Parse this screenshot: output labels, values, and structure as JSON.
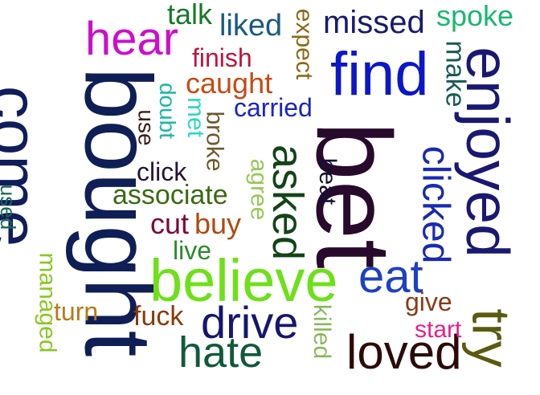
{
  "words": [
    {
      "text": "bought",
      "color": "#0f1f55"
    },
    {
      "text": "come",
      "color": "#111d5a"
    },
    {
      "text": "bet",
      "color": "#280a2c"
    },
    {
      "text": "enjoyed",
      "color": "#1a1870"
    },
    {
      "text": "find",
      "color": "#0b17c9"
    },
    {
      "text": "believe",
      "color": "#6ee019"
    },
    {
      "text": "asked",
      "color": "#134418"
    },
    {
      "text": "eat",
      "color": "#1e40c3"
    },
    {
      "text": "hear",
      "color": "#cc0fcc"
    },
    {
      "text": "loved",
      "color": "#2d0a0a"
    },
    {
      "text": "drive",
      "color": "#17166e"
    },
    {
      "text": "hate",
      "color": "#0f5a3a"
    },
    {
      "text": "try",
      "color": "#5a5a10"
    },
    {
      "text": "clicked",
      "color": "#1a2ab0"
    },
    {
      "text": "missed",
      "color": "#1a1a6b"
    },
    {
      "text": "liked",
      "color": "#1a5a82"
    },
    {
      "text": "spoke",
      "color": "#19b870"
    },
    {
      "text": "talk",
      "color": "#167a2a"
    },
    {
      "text": "finish",
      "color": "#c0143c"
    },
    {
      "text": "caught",
      "color": "#c94a14"
    },
    {
      "text": "carried",
      "color": "#1a23c9"
    },
    {
      "text": "make",
      "color": "#1a5a55"
    },
    {
      "text": "expect",
      "color": "#8a6a14"
    },
    {
      "text": "doubt",
      "color": "#19b8a8"
    },
    {
      "text": "met",
      "color": "#2ad8c2"
    },
    {
      "text": "use",
      "color": "#3a1a14"
    },
    {
      "text": "broke",
      "color": "#6a5a2a"
    },
    {
      "text": "agree",
      "color": "#98c85a"
    },
    {
      "text": "beat",
      "color": "#111133"
    },
    {
      "text": "click",
      "color": "#251535"
    },
    {
      "text": "associate",
      "color": "#3a6a12"
    },
    {
      "text": "used",
      "color": "#1a6a55"
    },
    {
      "text": "cut",
      "color": "#7a0a3a"
    },
    {
      "text": "buy",
      "color": "#b04a10"
    },
    {
      "text": "live",
      "color": "#2a8a2a"
    },
    {
      "text": "managed",
      "color": "#8ac824"
    },
    {
      "text": "turn",
      "color": "#b8781a"
    },
    {
      "text": "fuck",
      "color": "#8a3a0a"
    },
    {
      "text": "give",
      "color": "#8a3a14"
    },
    {
      "text": "start",
      "color": "#e8208a"
    },
    {
      "text": "killed",
      "color": "#8ab85a"
    }
  ]
}
